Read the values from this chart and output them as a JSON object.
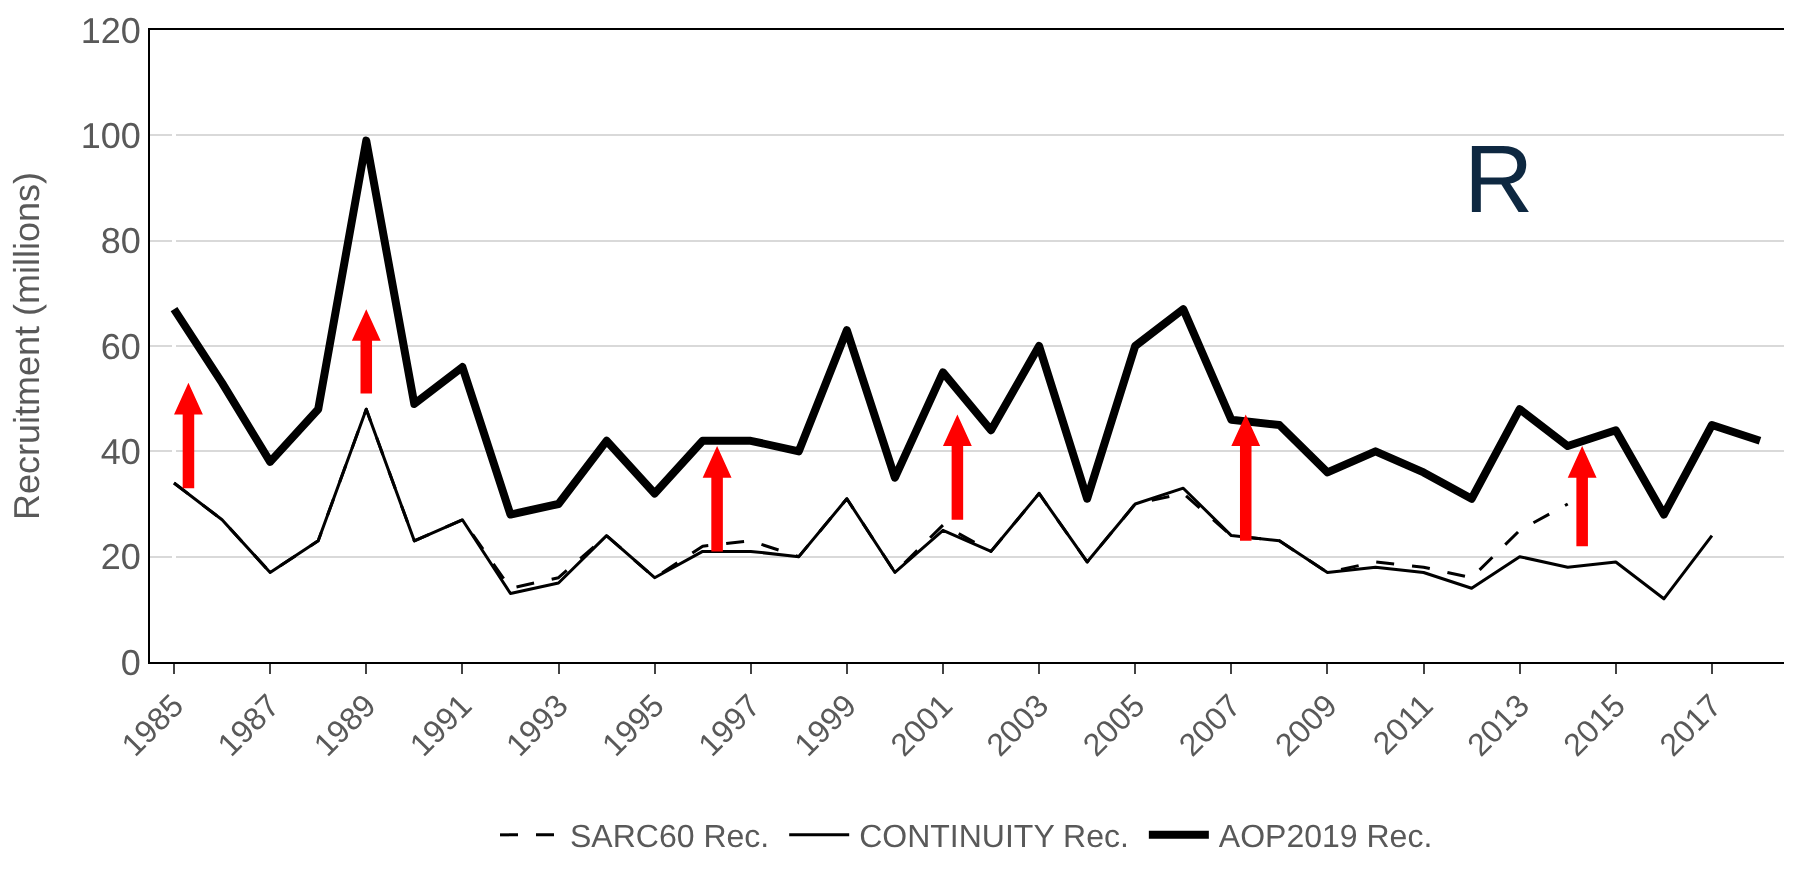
{
  "chart_data": {
    "type": "line",
    "ylabel": "Recruitment (millions)",
    "categories": [
      "1985",
      null,
      "1987",
      null,
      "1989",
      null,
      "1991",
      null,
      "1993",
      null,
      "1995",
      null,
      "1997",
      null,
      "1999",
      null,
      "2001",
      null,
      "2003",
      null,
      "2005",
      null,
      "2007",
      null,
      "2009",
      null,
      "2011",
      null,
      "2013",
      null,
      "2015",
      null,
      "2017",
      null
    ],
    "series": [
      {
        "name": "SARC60 Rec.",
        "color": "#000000",
        "line_style": "dashed",
        "values": [
          34,
          27,
          17,
          23,
          48,
          23,
          27,
          14,
          16,
          24,
          16,
          22,
          23,
          20,
          31,
          17,
          26,
          21,
          32,
          19,
          30,
          32,
          24,
          23,
          17,
          19,
          18,
          16,
          25,
          30,
          null,
          null,
          null,
          null
        ]
      },
      {
        "name": "CONTINUITY Rec.",
        "color": "#000000",
        "line_style": "solid",
        "values": [
          34,
          27,
          17,
          23,
          48,
          23,
          27,
          13,
          15,
          24,
          16,
          21,
          21,
          20,
          31,
          17,
          25,
          21,
          32,
          19,
          30,
          33,
          24,
          23,
          17,
          18,
          17,
          14,
          20,
          18,
          19,
          12,
          24,
          null
        ]
      },
      {
        "name": "AOP2019 Rec.",
        "color": "#000000",
        "line_style": "solid",
        "values": [
          67,
          53,
          38,
          48,
          99,
          49,
          56,
          28,
          30,
          42,
          32,
          42,
          42,
          40,
          63,
          35,
          55,
          44,
          60,
          31,
          60,
          67,
          46,
          45,
          36,
          40,
          36,
          31,
          48,
          41,
          44,
          28,
          45,
          42
        ]
      }
    ],
    "ylim": [
      0,
      120
    ],
    "yticks": [
      0,
      20,
      40,
      60,
      80,
      100,
      120
    ],
    "grid": "y",
    "legend": "bottom",
    "marker": "none",
    "annotations": [
      "R"
    ]
  }
}
